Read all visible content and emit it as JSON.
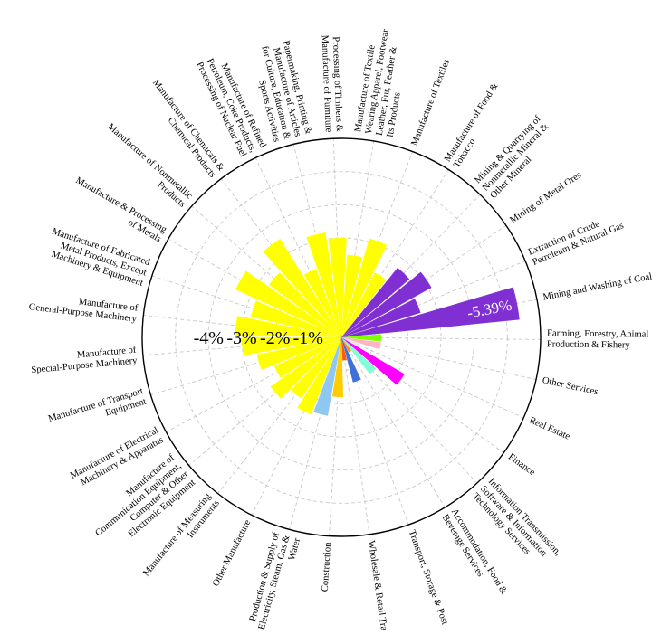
{
  "chart_data": {
    "type": "polar-bar",
    "title": "",
    "value_unit": "%",
    "radial_scale": {
      "min": -6,
      "max": 0,
      "ring_values": [
        -6,
        -5,
        -4,
        -3,
        -2,
        -1
      ],
      "ring_labels": [
        {
          "value": -4,
          "text": "-4%"
        },
        {
          "value": -3,
          "text": "-3%"
        },
        {
          "value": -2,
          "text": "-2%"
        },
        {
          "value": -1,
          "text": "-1%"
        }
      ]
    },
    "grid": true,
    "peak_label": {
      "category": "Mining and Washing of Coal",
      "text": "-5.39%"
    },
    "categories": [
      {
        "name": "Mining and Washing of Coal",
        "value": -5.39,
        "color": "#7f2fd2"
      },
      {
        "name": "Extraction of Crude Petroleum & Natural Gas",
        "value": -2.5,
        "color": "#7f2fd2"
      },
      {
        "name": "Mining of Metal Ores",
        "value": -3.1,
        "color": "#7f2fd2"
      },
      {
        "name": "Mining & Quarrying of Nonmetallic Mineral & Other Mineral",
        "value": -2.7,
        "color": "#7f2fd2"
      },
      {
        "name": "Manufacture of Food & Tobacco",
        "value": -2.2,
        "color": "#ffff00"
      },
      {
        "name": "Manufacture of Textiles",
        "value": -3.1,
        "color": "#ffff00"
      },
      {
        "name": "Manufacture of Textile Wearing Apparel, Footwear Leather, Fur, Feather & Its Products",
        "value": -2.5,
        "color": "#ffff00"
      },
      {
        "name": "Processing of Timbers & Manufacture of Furniture",
        "value": -3.0,
        "color": "#ffff00"
      },
      {
        "name": "Papermaking, Printing & Manufacture of Articles for Culture, Education & Sports Activities",
        "value": -3.2,
        "color": "#ffff00"
      },
      {
        "name": "Manufacture of Refined Petroleum, Coke Products, Processing of Nuclear Fuel",
        "value": -2.2,
        "color": "#ffff00"
      },
      {
        "name": "Manufacture of Chemicals & Chemical Products",
        "value": -3.5,
        "color": "#ffff00"
      },
      {
        "name": "Manufacture of Nonmetallic Products",
        "value": -2.7,
        "color": "#ffff00"
      },
      {
        "name": "Manufacture & Processing of Metals",
        "value": -3.5,
        "color": "#ffff00"
      },
      {
        "name": "Manufacture of Fabricated Metal Products, Except Machinery & Equipment",
        "value": -2.8,
        "color": "#ffff00"
      },
      {
        "name": "Manufacture of General-Purpose Machinery",
        "value": -3.2,
        "color": "#ffff00"
      },
      {
        "name": "Manufacture of Special-Purpose Machinery",
        "value": -3.0,
        "color": "#ffff00"
      },
      {
        "name": "Manufacture of Transport Equipment",
        "value": -2.6,
        "color": "#ffff00"
      },
      {
        "name": "Manufacture of Electrical Machinery & Apparatus",
        "value": -2.2,
        "color": "#ffff00"
      },
      {
        "name": "Manufacture of Communication Equipment, Computer & Other Electronic Equipment",
        "value": -2.6,
        "color": "#ffff00"
      },
      {
        "name": "Manufacture of Measuring Instruments",
        "value": -2.2,
        "color": "#ffff00"
      },
      {
        "name": "Other Manufacture",
        "value": -2.5,
        "color": "#ffff00"
      },
      {
        "name": "Production & Supply of Electricity, Steam, Gas & Water",
        "value": -2.4,
        "color": "#8ec8f2"
      },
      {
        "name": "Construction",
        "value": -1.8,
        "color": "#ffcc00"
      },
      {
        "name": "Wholesale & Retail Trade",
        "value": -0.7,
        "color": "#ff5a00"
      },
      {
        "name": "Transport, Storage & Post",
        "value": -1.4,
        "color": "#3f6fd8"
      },
      {
        "name": "Accommodation, Food & Beverage Services",
        "value": -0.5,
        "color": "#ff8c1a"
      },
      {
        "name": "Information Transmission, Software & Information Technology Services",
        "value": -1.4,
        "color": "#7fffd4"
      },
      {
        "name": "Finance",
        "value": -2.2,
        "color": "#ff00ff"
      },
      {
        "name": "Real Estate",
        "value": -0.6,
        "color": "#e8e8e8"
      },
      {
        "name": "Other Services",
        "value": -1.2,
        "color": "#ffb6c1"
      },
      {
        "name": "Farming, Forestry, Animal Production & Fishery",
        "value": -1.2,
        "color": "#7fff00"
      }
    ]
  }
}
